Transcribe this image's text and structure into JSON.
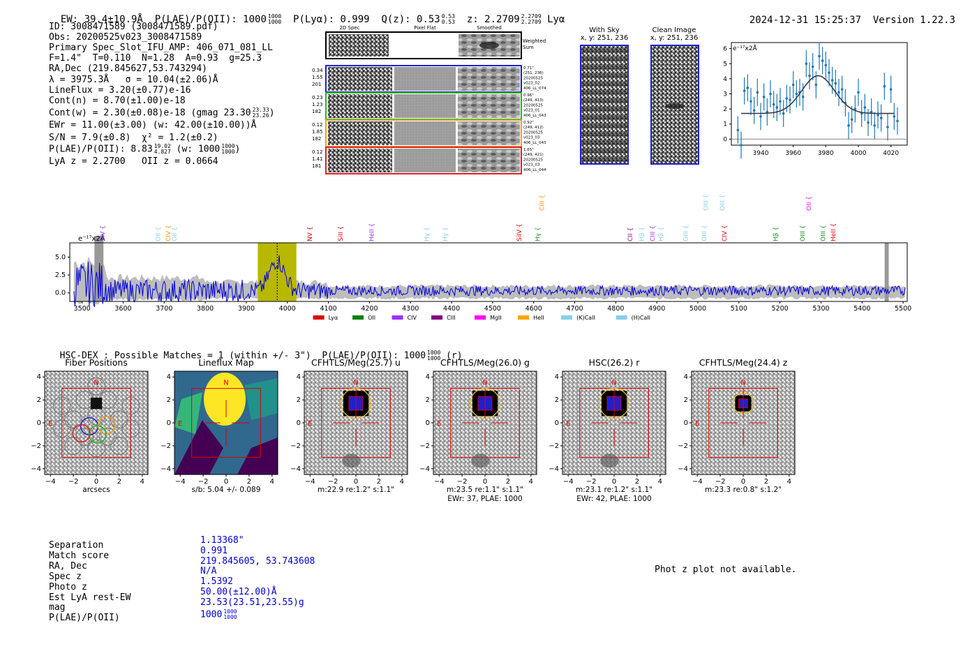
{
  "header": {
    "ew": "EW: 39.4±10.9Å",
    "plae": "P(LAE)/P(OII): 1000",
    "plae_frac": [
      "1000",
      "1000"
    ],
    "plya": "P(Lyα): 0.999",
    "qz": "Q(z): 0.53",
    "qz_frac": [
      "0.53",
      "0.53"
    ],
    "z": "z: 2.2709",
    "z_frac": [
      "2.2709",
      "2.2709"
    ],
    "lya": "Lyα",
    "timestamp": "2024-12-31 15:25:37",
    "version": "Version 1.22.3"
  },
  "info": {
    "lines": [
      "ID: 3008471589 (3008471589.pdf)",
      "Obs: 20200525v023_3008471589",
      "Primary Spec_Slot_IFU_AMP: 406_071_081_LL",
      "F=1.4\"  T=0.110  N=1.28  A=0.93  g=25.3",
      "RA,Dec (219.845627,53.743294)",
      "λ = 3975.3Å   σ = 10.04(±2.06)Å",
      "LineFlux = 3.20(±0.77)e-16",
      "Cont(n) = 8.70(±1.00)e-18"
    ],
    "contw": "Cont(w) = 2.30(±0.08)e-18 (gmag 23.30",
    "contw_frac": [
      "23.33",
      "23.26"
    ],
    "ewr": "EWr = 11.00(±3.00) (w: 42.00(±10.00))Å",
    "sn": "S/N = 7.9(±0.8)  χ² = 1.2(±0.2)",
    "plae2": "P(LAE)/P(OII): 8.83",
    "plae2_frac": [
      "19.02",
      "4.827"
    ],
    "plae2_w": "(w: 1000",
    "plae2_w_frac": [
      "1000",
      "1000"
    ],
    "lyaz": "LyA z = 2.2700   OII z = 0.0664"
  },
  "spec2d": {
    "col_titles": [
      "2D Spec",
      "Pixel Flat",
      "Smoothed"
    ],
    "weighted_sum": [
      "Weighted",
      "Sum"
    ],
    "rows": [
      {
        "left": [
          "0.34",
          "1.55",
          "201"
        ],
        "right": [
          "0.71\"",
          "(251, 236)",
          "20200525",
          "v023_02",
          "406_LL_074"
        ],
        "color": "#1f1fd0"
      },
      {
        "left": [
          "0.23",
          "1.23",
          "182"
        ],
        "right": [
          "0.96\"",
          "(249, 413)",
          "20200525",
          "v023_01",
          "406_LL_043"
        ],
        "color": "#22bb22"
      },
      {
        "left": [
          "0.12",
          "1.85",
          "182"
        ],
        "right": [
          "0.92\"",
          "(249, 412)",
          "20200525",
          "v023_03",
          "406_LL_043"
        ],
        "color": "#f0a020"
      },
      {
        "left": [
          "0.12",
          "1.41",
          "181"
        ],
        "right": [
          "1.65\"",
          "(249, 421)",
          "20200525",
          "v023_03",
          "406_LL_044"
        ],
        "color": "#e02020"
      }
    ]
  },
  "sky": {
    "with_sky_title": "With Sky",
    "with_sky_xy": "x, y: 251, 236",
    "clean_title": "Clean Image",
    "clean_xy": "x, y: 251, 236"
  },
  "chart_data": [
    {
      "type": "scatter",
      "name": "line-fit",
      "ylabel": "e⁻¹⁷x2Å",
      "x_ticks": [
        3940,
        3960,
        3980,
        4000,
        4020
      ],
      "y_ticks": [
        0,
        1,
        2,
        3,
        4,
        5,
        6
      ],
      "xlim": [
        3922,
        4030
      ],
      "ylim": [
        -0.4,
        6.4
      ],
      "points": [
        [
          3926,
          0.6
        ],
        [
          3928,
          -0.4
        ],
        [
          3930,
          3.2
        ],
        [
          3932,
          3.4
        ],
        [
          3934,
          2.5
        ],
        [
          3936,
          1.9
        ],
        [
          3938,
          3.1
        ],
        [
          3940,
          1.5
        ],
        [
          3942,
          2.8
        ],
        [
          3944,
          1.8
        ],
        [
          3946,
          3.0
        ],
        [
          3948,
          2.3
        ],
        [
          3950,
          2.1
        ],
        [
          3952,
          2.5
        ],
        [
          3954,
          1.7
        ],
        [
          3956,
          2.7
        ],
        [
          3958,
          2.6
        ],
        [
          3960,
          3.6
        ],
        [
          3962,
          3.0
        ],
        [
          3964,
          3.1
        ],
        [
          3966,
          2.8
        ],
        [
          3968,
          5.0
        ],
        [
          3970,
          4.2
        ],
        [
          3972,
          4.8
        ],
        [
          3974,
          3.6
        ],
        [
          3976,
          5.5
        ],
        [
          3978,
          5.2
        ],
        [
          3980,
          4.9
        ],
        [
          3982,
          4.4
        ],
        [
          3984,
          3.9
        ],
        [
          3986,
          3.7
        ],
        [
          3988,
          3.1
        ],
        [
          3990,
          3.3
        ],
        [
          3992,
          2.4
        ],
        [
          3994,
          0.9
        ],
        [
          3996,
          1.3
        ],
        [
          3998,
          2.0
        ],
        [
          4000,
          3.1
        ],
        [
          4002,
          1.7
        ],
        [
          4004,
          2.1
        ],
        [
          4006,
          1.1
        ],
        [
          4008,
          1.8
        ],
        [
          4010,
          0.9
        ],
        [
          4012,
          1.6
        ],
        [
          4014,
          1.4
        ],
        [
          4016,
          3.5
        ],
        [
          4018,
          0.8
        ],
        [
          4020,
          3.3
        ],
        [
          4022,
          1.5
        ],
        [
          4024,
          1.2
        ]
      ],
      "fit": {
        "base": 1.7,
        "amp": 2.5,
        "mu": 3975.3,
        "sigma": 10.04
      }
    },
    {
      "type": "line",
      "name": "full-spectrum",
      "ylabel": "e⁻¹⁷x2Å",
      "x_ticks": [
        3500,
        3600,
        3700,
        3800,
        3900,
        4000,
        4100,
        4200,
        4300,
        4400,
        4500,
        4600,
        4700,
        4800,
        4900,
        5000,
        5100,
        5200,
        5300,
        5400,
        5500
      ],
      "y_ticks": [
        0.0,
        2.5,
        5.0
      ],
      "xlim": [
        3470,
        5510
      ],
      "ylim": [
        -1.2,
        7.0
      ],
      "highlight_range": [
        3928,
        4022
      ],
      "line_center": 3975.3,
      "lines": [
        {
          "label": "SiV",
          "x": 3555,
          "color": "#9b30ff",
          "tier": 0
        },
        {
          "label": "OII",
          "x": 3690,
          "color": "#87ceeb",
          "tier": 0
        },
        {
          "label": "CIV",
          "x": 3715,
          "color": "#ff8c00",
          "tier": 0
        },
        {
          "label": "OII",
          "x": 3730,
          "color": "#87ceeb",
          "tier": 0
        },
        {
          "label": "NV",
          "x": 4060,
          "color": "#e00000",
          "tier": 0
        },
        {
          "label": "SiII",
          "x": 4135,
          "color": "#e00000",
          "tier": 0
        },
        {
          "label": "HeII",
          "x": 4210,
          "color": "#9b30ff",
          "tier": 0
        },
        {
          "label": "Hγ",
          "x": 4345,
          "color": "#87ceeb",
          "tier": 0
        },
        {
          "label": "Hγ",
          "x": 4390,
          "color": "#87ceeb",
          "tier": 0
        },
        {
          "label": "SiIV",
          "x": 4570,
          "color": "#e00000",
          "tier": 0
        },
        {
          "label": "Hγ",
          "x": 4615,
          "color": "#228b22",
          "tier": 0
        },
        {
          "label": "CIII",
          "x": 4625,
          "color": "#ff8c00",
          "tier": 1
        },
        {
          "label": "CII",
          "x": 4840,
          "color": "#8b008b",
          "tier": 0
        },
        {
          "label": "Hβ",
          "x": 4868,
          "color": "#87ceeb",
          "tier": 0
        },
        {
          "label": "CIII",
          "x": 4895,
          "color": "#9b30ff",
          "tier": 0
        },
        {
          "label": "Hβ",
          "x": 4915,
          "color": "#87ceeb",
          "tier": 0
        },
        {
          "label": "OIII",
          "x": 4975,
          "color": "#87ceeb",
          "tier": 0
        },
        {
          "label": "OIII",
          "x": 5020,
          "color": "#87ceeb",
          "tier": 0
        },
        {
          "label": "OIII",
          "x": 5025,
          "color": "#87ceeb",
          "tier": 1
        },
        {
          "label": "OIII",
          "x": 5065,
          "color": "#87ceeb",
          "tier": 1
        },
        {
          "label": "CIV",
          "x": 5070,
          "color": "#e00000",
          "tier": 0
        },
        {
          "label": "Hβ",
          "x": 5195,
          "color": "#228b22",
          "tier": 0
        },
        {
          "label": "OIII",
          "x": 5260,
          "color": "#228b22",
          "tier": 0
        },
        {
          "label": "OII",
          "x": 5275,
          "color": "#ff00ff",
          "tier": 1
        },
        {
          "label": "OIII",
          "x": 5310,
          "color": "#228b22",
          "tier": 0
        },
        {
          "label": "HeII",
          "x": 5335,
          "color": "#e00000",
          "tier": 0
        }
      ],
      "legend": [
        {
          "label": "Lyα",
          "color": "#e00000"
        },
        {
          "label": "OII",
          "color": "#008000"
        },
        {
          "label": "CIV",
          "color": "#9b30ff"
        },
        {
          "label": "CIII",
          "color": "#800080"
        },
        {
          "label": "MgII",
          "color": "#ff00ff"
        },
        {
          "label": "HeII",
          "color": "#ffa500"
        },
        {
          "label": "(K)CaII",
          "color": "#87ceeb"
        },
        {
          "label": "(H)CaII",
          "color": "#87ceeb"
        }
      ]
    }
  ],
  "match_header": "HSC-DEX : Possible Matches = 1 (within +/- 3\")  P(LAE)/P(OII): 1000",
  "match_header_frac": [
    "1000",
    "1000"
  ],
  "match_header_tail": "(r)",
  "stamps": [
    {
      "title": "Fiber Positions",
      "caption": "arcsecs",
      "caption2": ""
    },
    {
      "title": "Lineflux Map",
      "caption": "s/b: 5.04 +/- 0.089",
      "caption2": ""
    },
    {
      "title": "CFHTLS/Meg(25.7) u",
      "caption": "m:22.9  re:1.2\"  s:1.1\"",
      "caption2": ""
    },
    {
      "title": "CFHTLS/Meg(26.0) g",
      "caption": "m:23.5  re:1.1\"  s:1.1\"",
      "caption2": "EWr: 37, PLAE: 1000"
    },
    {
      "title": "HSC(26.2) r",
      "caption": "m:23.1  re:1.2\"  s:1.1\"",
      "caption2": "EWr: 42, PLAE: 1000"
    },
    {
      "title": "CFHTLS/Meg(24.4) z",
      "caption": "m:23.3  re:0.8\"  s:1.2\"",
      "caption2": ""
    }
  ],
  "stamp_axes": {
    "ticks": [
      "−4",
      "−2",
      "0",
      "2",
      "4"
    ],
    "north": "N",
    "east": "E"
  },
  "match_table": {
    "labels": [
      "Separation",
      "Match score",
      "RA, Dec",
      "Spec z",
      "Photo z",
      "Est LyA rest-EW",
      "mag",
      "P(LAE)/P(OII)"
    ],
    "values": [
      "1.13368\"",
      "0.991",
      "219.845605, 53.743608",
      "N/A",
      "1.5392",
      "50.00(±12.00)Å",
      "23.53(23.51,23.55)g",
      "1000"
    ],
    "plae_frac": [
      "1000",
      "1000"
    ]
  },
  "photz_msg": "Phot z plot not available."
}
